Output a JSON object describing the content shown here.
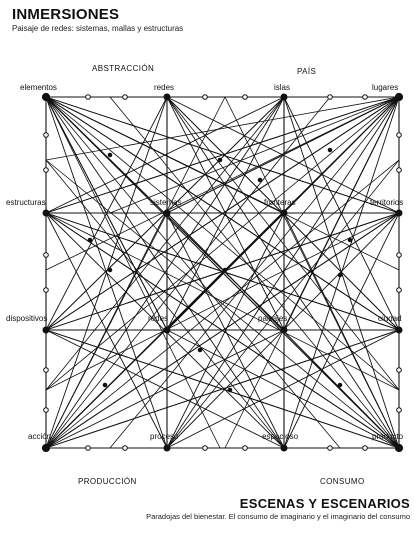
{
  "header": {
    "title": "INMERSIONES",
    "subtitle": "Paisaje de redes: sistemas, mallas y estructuras"
  },
  "groups": {
    "top_left": "ABSTRACCIÓN",
    "top_right": "PAÍS",
    "bottom_left": "PRODUCCIÓN",
    "bottom_right": "CONSUMO"
  },
  "nodes": {
    "elementos": "elementos",
    "redes": "redes",
    "islas": "islas",
    "lugares": "lugares",
    "estructuras": "estructuras",
    "sistemas": "sistemas",
    "fronteras": "fronteras",
    "territorios": "territorios",
    "dispositivos": "dispositivos",
    "redes_mid": "redes",
    "paisajes": "paisajes",
    "ciudad": "ciudad",
    "accion": "acción",
    "proceso": "proceso",
    "espacioso": "espacioso",
    "producto": "producto"
  },
  "footer": {
    "title": "ESCENAS Y ESCENARIOS",
    "subtitle": "Paradojas del bienestar. El consumo de imaginario y el imaginario del consumo"
  },
  "colors": {
    "ink": "#111111",
    "background": "#ffffff"
  }
}
